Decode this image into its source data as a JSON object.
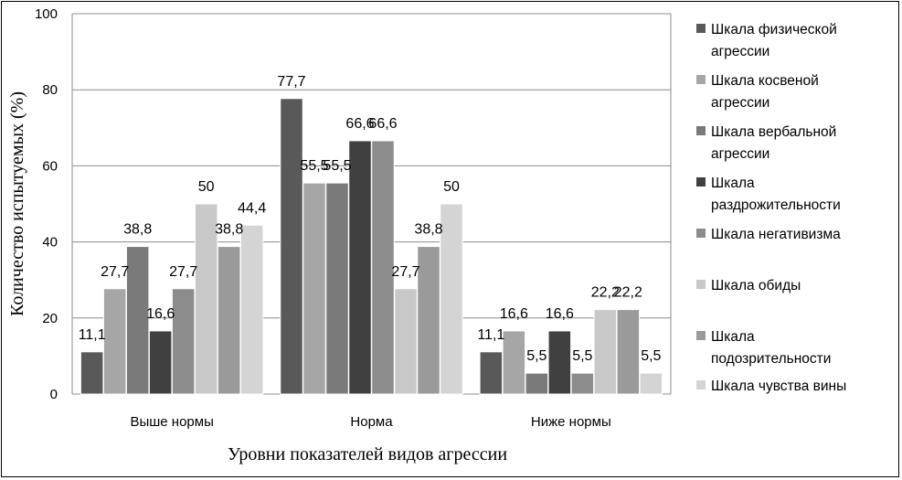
{
  "chart_data": {
    "type": "bar",
    "categories": [
      "Выше нормы",
      "Норма",
      "Ниже нормы"
    ],
    "ylabel": "Количество испытуемых (%)",
    "xlabel": "Уровни показателей видов агрессии",
    "ylim": [
      0,
      100
    ],
    "yticks": [
      0,
      20,
      40,
      60,
      80,
      100
    ],
    "grid": true,
    "legend_position": "right",
    "series": [
      {
        "name": "Шкала физической агрессии",
        "legend_lines": [
          "Шкала физической",
          "агрессии"
        ],
        "color": "#595959",
        "values": [
          11.1,
          77.7,
          11.1
        ],
        "labels": [
          "11,1",
          "77,7",
          "11,1"
        ]
      },
      {
        "name": "Шкала косвеной агрессии",
        "legend_lines": [
          "Шкала косвеной",
          "агрессии"
        ],
        "color": "#a6a6a6",
        "values": [
          27.7,
          55.5,
          16.6
        ],
        "labels": [
          "27,7",
          "55,5",
          "16,6"
        ]
      },
      {
        "name": "Шкала вербальной агрессии",
        "legend_lines": [
          "Шкала вербальной",
          "агрессии"
        ],
        "color": "#7a7a7a",
        "values": [
          38.8,
          55.5,
          5.5
        ],
        "labels": [
          "38,8",
          "55,5",
          "5,5"
        ]
      },
      {
        "name": "Шкала раздрожительности",
        "legend_lines": [
          "Шкала",
          "раздрожительности"
        ],
        "color": "#404040",
        "values": [
          16.6,
          66.6,
          16.6
        ],
        "labels": [
          "16,6",
          "66,6",
          "16,6"
        ]
      },
      {
        "name": "Шкала негативизма",
        "legend_lines": [
          "Шкала негативизма"
        ],
        "color": "#8c8c8c",
        "values": [
          27.7,
          66.6,
          5.5
        ],
        "labels": [
          "27,7",
          "66,6",
          "5,5"
        ]
      },
      {
        "name": "Шкала обиды",
        "legend_lines": [
          "Шкала обиды"
        ],
        "color": "#c8c8c8",
        "values": [
          50,
          27.7,
          22.2
        ],
        "labels": [
          "50",
          "27,7",
          "22,2"
        ]
      },
      {
        "name": "Шкала подозрительности",
        "legend_lines": [
          "Шкала",
          "подозрительности"
        ],
        "color": "#9a9a9a",
        "values": [
          38.8,
          38.8,
          22.2
        ],
        "labels": [
          "38,8",
          "38,8",
          "22,2"
        ]
      },
      {
        "name": "Шкала чувства вины",
        "legend_lines": [
          "Шкала чувства вины"
        ],
        "color": "#d4d4d4",
        "values": [
          44.4,
          50,
          5.5
        ],
        "labels": [
          "44,4",
          "50",
          "5,5"
        ]
      }
    ]
  }
}
